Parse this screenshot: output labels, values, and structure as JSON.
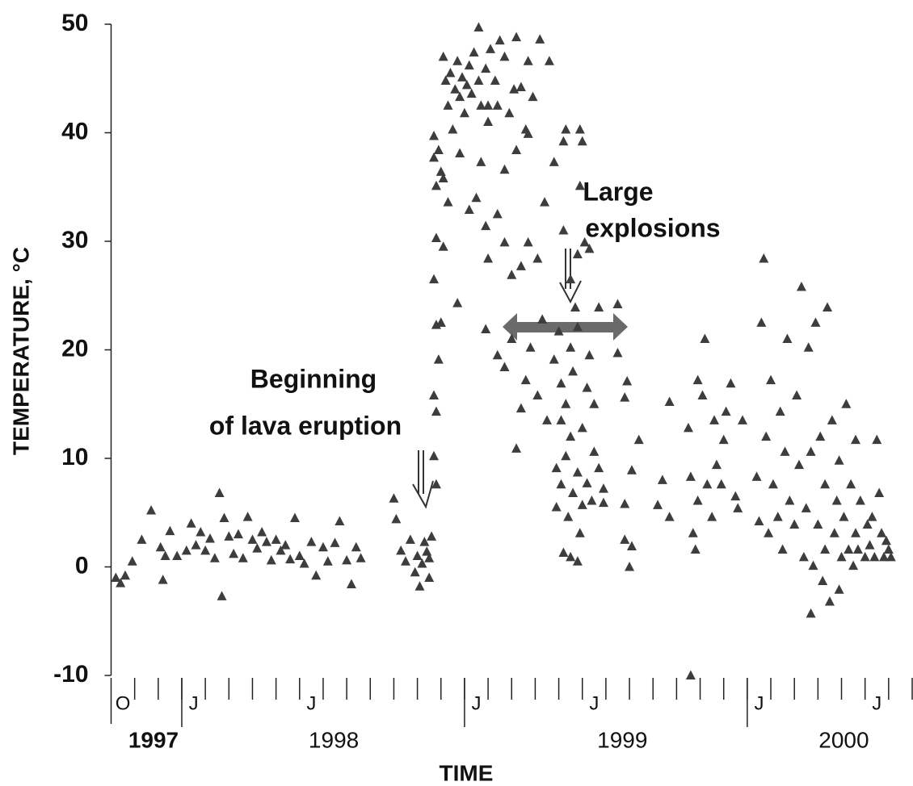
{
  "chart_data": {
    "type": "scatter",
    "ylabel": "TEMPERATURE, °C",
    "xlabel": "TIME",
    "annotations": [
      {
        "lines": [
          "Beginning",
          "of lava eruption"
        ]
      },
      {
        "lines": [
          "Large",
          "explosions"
        ]
      }
    ],
    "ylim": [
      -10,
      50
    ],
    "yticks": [
      50,
      40,
      30,
      20,
      10,
      0,
      -10
    ],
    "xlim": [
      -3,
      31
    ],
    "xticks": [
      -3,
      -2,
      -1,
      0,
      1,
      2,
      3,
      4,
      5,
      6,
      7,
      8,
      9,
      10,
      11,
      12,
      13,
      14,
      15,
      16,
      17,
      18,
      19,
      20,
      21,
      22,
      23,
      24,
      25,
      26,
      27,
      28,
      29,
      30,
      31
    ],
    "year_ticks": [
      0,
      12,
      24
    ],
    "month_labels": [
      {
        "value": -2.5,
        "label": "O"
      },
      {
        "value": 0.5,
        "label": "J"
      },
      {
        "value": 5.5,
        "label": "J"
      },
      {
        "value": 12.5,
        "label": "J"
      },
      {
        "value": 17.5,
        "label": "J"
      },
      {
        "value": 24.5,
        "label": "J"
      },
      {
        "value": 29.5,
        "label": "J"
      }
    ],
    "year_labels": [
      {
        "value": -1.2,
        "label": "1997"
      },
      {
        "value": 6.45,
        "label": "1998"
      },
      {
        "value": 18.7,
        "label": "1999"
      },
      {
        "value": 28.1,
        "label": "2000"
      }
    ],
    "color": "#3d3d3d",
    "x": [
      -2.8,
      -2.6,
      -2.4,
      -2.1,
      -1.7,
      -1.3,
      -0.9,
      -0.7,
      -0.5,
      -0.8,
      -0.2,
      0.2,
      0.4,
      0.6,
      0.8,
      1,
      1.2,
      1.4,
      1.6,
      1.7,
      1.8,
      2,
      2.2,
      2.4,
      2.6,
      2.8,
      3,
      3.2,
      3.4,
      3.6,
      3.8,
      4,
      4.2,
      4.4,
      4.6,
      4.8,
      5,
      5.2,
      5.5,
      5.7,
      6,
      6.2,
      6.5,
      6.7,
      7,
      7.2,
      7.4,
      7.6,
      9,
      9.1,
      9.3,
      9.5,
      9.7,
      9.9,
      10,
      10.1,
      10.2,
      10.3,
      10.4,
      10.5,
      10.6,
      10.5,
      10.7,
      10.8,
      10.7,
      10.8,
      10.9,
      10.8,
      11.0,
      10.7,
      10.8,
      10.7,
      10.7,
      10.9,
      11.0,
      10.8,
      11.1,
      11.2,
      11.3,
      11.4,
      11.6,
      11.7,
      11.8,
      11.9,
      12.0,
      12.1,
      12.2,
      12.3,
      12.4,
      12.6,
      12.7,
      12.9,
      13.0,
      13.1,
      13.3,
      13.4,
      13.5,
      13.7,
      13.9,
      12.6,
      14.2,
      14.4,
      14.6,
      14.7,
      15.2,
      15.6,
      14.9,
      14.1,
      13,
      11.1,
      11.3,
      11.5,
      11.8,
      12.2,
      12.5,
      12.7,
      12.9,
      13.0,
      11.1,
      11.7,
      11.0,
      13.4,
      13.7,
      14.0,
      14.4,
      14.7,
      15.1,
      15.4,
      15.8,
      16.2,
      16.5,
      16.8,
      17.1,
      16.3,
      17.0,
      16.9,
      14.2,
      13.7,
      14.7,
      12.9,
      13.4,
      13.7,
      14.0,
      14.2,
      14.4,
      14.6,
      14.8,
      15.1,
      15.3,
      15.5,
      15.8,
      16.0,
      16.1,
      16.3,
      16.5,
      16.6,
      16.8,
      17.0,
      17.2,
      17.3,
      17.5,
      17.7,
      16.7,
      16.1,
      16.5,
      15.9,
      15.9,
      16.1,
      16.3,
      16.4,
      16.2,
      16.5,
      16.6,
      16.8,
      16.9,
      17.0,
      16.8,
      17.2,
      17.4,
      17.7,
      17.9,
      17.9,
      17.5,
      16.2,
      16.9,
      17.3,
      18.5,
      18.5,
      18.8,
      18.9,
      18.8,
      19.1,
      19.0,
      19.1,
      18.8,
      19.4,
      20.2,
      20.4,
      20.7,
      20.7,
      21.6,
      21.5,
      21.6,
      21.7,
      21.8,
      21.9,
      21.9,
      22.1,
      22.2,
      22.3,
      22.5,
      22.6,
      22.7,
      22.9,
      23.0,
      23.1,
      23.3,
      23.5,
      23.6,
      23.8,
      24.4,
      24.5,
      24.6,
      24.7,
      24.8,
      24.9,
      25.0,
      25.1,
      25.3,
      25.4,
      25.5,
      25.6,
      25.7,
      25.8,
      26.0,
      26.1,
      26.2,
      26.3,
      26.4,
      26.5,
      26.6,
      26.7,
      26.7,
      26.8,
      26.9,
      27.0,
      27.1,
      27.2,
      27.3,
      27.3,
      27.4,
      27.5,
      27.6,
      27.7,
      27.8,
      27.9,
      27.9,
      28.0,
      28.1,
      28.2,
      28.3,
      28.4,
      28.5,
      28.6,
      28.6,
      28.7,
      28.8,
      29.0,
      29.1,
      29.2,
      29.3,
      29.4,
      29.5,
      29.6,
      29.7,
      29.8,
      29.9,
      30.0,
      30.1
    ],
    "values": [
      -1,
      -1.5,
      -0.8,
      0.5,
      2.5,
      5.2,
      1.8,
      1,
      3.3,
      -1.2,
      1,
      1.5,
      4,
      2,
      3.2,
      1.5,
      2.6,
      0.8,
      6.8,
      -2.7,
      4.5,
      2.8,
      1.2,
      3,
      0.8,
      4.6,
      2.5,
      1.7,
      3.2,
      2.3,
      0.6,
      2.5,
      1.5,
      2,
      0.7,
      4.5,
      1,
      0.3,
      2.3,
      -0.8,
      1.8,
      0.5,
      2.2,
      4.2,
      0.6,
      -1.6,
      1.8,
      0.8,
      6.3,
      4.4,
      1.5,
      0.5,
      2.5,
      -0.5,
      1,
      -1.8,
      0.3,
      2.3,
      1.4,
      -1,
      2.8,
      0.8,
      10.2,
      7.6,
      15.8,
      14.3,
      19.1,
      22.3,
      22.5,
      26.5,
      30.3,
      37.7,
      39.7,
      38.4,
      36.4,
      35.1,
      47,
      44.8,
      42.5,
      45.5,
      44,
      46.6,
      43.3,
      45.1,
      41.8,
      44.4,
      46.2,
      43.6,
      47.4,
      44.8,
      42.5,
      45.9,
      41,
      47.7,
      44.8,
      42.5,
      48.5,
      47,
      41.8,
      49.7,
      48.8,
      44.2,
      40.3,
      46.6,
      48.6,
      46.6,
      43.3,
      44,
      42.5,
      35.8,
      33.6,
      40.3,
      38.1,
      32.9,
      34,
      37.3,
      31.4,
      28.4,
      29.5,
      24.3,
      22.5,
      32.5,
      29.9,
      26.9,
      27.7,
      29.9,
      28.4,
      33.6,
      37.3,
      31,
      26.5,
      28.8,
      29.9,
      40.3,
      39.2,
      35.1,
      38.4,
      36.6,
      39.9,
      21.9,
      19.5,
      18.4,
      21,
      10.9,
      14.6,
      17.2,
      20.2,
      15.8,
      22.8,
      13.5,
      19.1,
      21.7,
      16.9,
      15,
      20.2,
      18,
      22.1,
      12.8,
      16.5,
      19.5,
      15,
      23.9,
      23.9,
      13.5,
      12,
      9.1,
      5.5,
      7.6,
      10.2,
      4.6,
      1.3,
      0.9,
      6.8,
      8.7,
      3.1,
      5.7,
      0.5,
      7.7,
      6.1,
      9.1,
      7.2,
      5.9,
      10.6,
      39.2,
      40.3,
      29.3,
      24.2,
      19.7,
      15.6,
      17.1,
      2.5,
      1.9,
      0,
      8.9,
      5.8,
      11.7,
      5.7,
      8,
      4.6,
      15.2,
      -10,
      12.8,
      8.3,
      3.1,
      1.6,
      6.1,
      17.2,
      15.8,
      21,
      7.6,
      4.6,
      13.5,
      9.4,
      7.6,
      11.7,
      14.3,
      16.9,
      6.5,
      5.4,
      13.5,
      8.3,
      4.2,
      22.5,
      28.4,
      12,
      3.1,
      17.2,
      7.6,
      4.6,
      14.3,
      1.6,
      10.6,
      21,
      6.1,
      3.9,
      15.8,
      9.4,
      25.8,
      0.9,
      5.4,
      20.2,
      10.6,
      -4.3,
      0.1,
      22.5,
      3.9,
      12,
      -1.3,
      7.6,
      1.6,
      23.9,
      -3.2,
      13.5,
      3.1,
      6.1,
      -2.1,
      9.8,
      0.9,
      4.6,
      15,
      1.6,
      7.6,
      0.1,
      11.7,
      3.1,
      1.6,
      6.1,
      0.9,
      3.9,
      2,
      4.6,
      0.9,
      11.7,
      6.8,
      3.1,
      0.9,
      2.4,
      1.6,
      0.9
    ]
  }
}
